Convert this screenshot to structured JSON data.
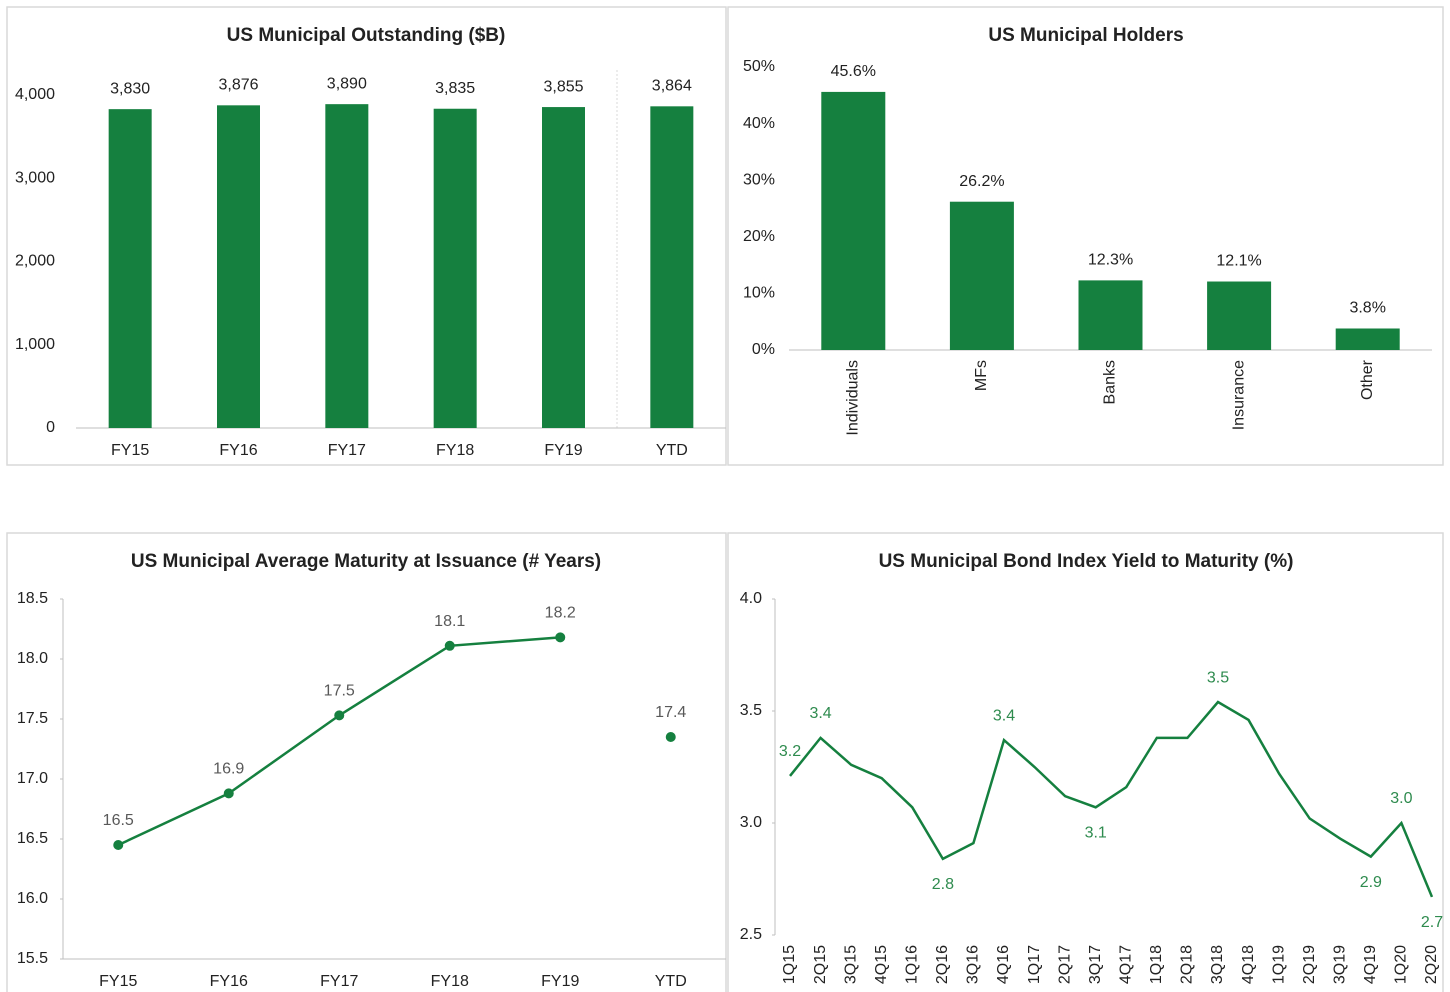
{
  "chart_data": [
    {
      "type": "bar",
      "title": "US Municipal Outstanding ($B)",
      "categories": [
        "FY15",
        "FY16",
        "FY17",
        "FY18",
        "FY19",
        "YTD"
      ],
      "values": [
        3830,
        3876,
        3890,
        3835,
        3855,
        3864
      ],
      "value_labels": [
        "3,830",
        "3,876",
        "3,890",
        "3,835",
        "3,855",
        "3,864"
      ],
      "color": "#15803f",
      "label_color": "#222222",
      "ylim": [
        0,
        4000
      ],
      "yticks": [
        0,
        {
          "value": 1000,
          "label": "1,000"
        },
        {
          "value": 2000,
          "label": "2,000"
        },
        {
          "value": 3000,
          "label": "3,000"
        },
        {
          "value": 4000,
          "label": "4,000"
        }
      ]
    },
    {
      "type": "bar",
      "title": "US Municipal Holders",
      "categories": [
        "Individuals",
        "MFs",
        "Banks",
        "Insurance",
        "Other"
      ],
      "values": [
        45.6,
        26.2,
        12.3,
        12.1,
        3.8
      ],
      "value_labels": [
        "45.6%",
        "26.2%",
        "12.3%",
        "12.1%",
        "3.8%"
      ],
      "color": "#15803f",
      "label_color": "#222222",
      "rotate_categories": true,
      "ylim": [
        0,
        50
      ],
      "yticks": [
        {
          "value": 0,
          "label": "0%"
        },
        {
          "value": 10,
          "label": "10%"
        },
        {
          "value": 20,
          "label": "20%"
        },
        {
          "value": 30,
          "label": "30%"
        },
        {
          "value": 40,
          "label": "40%"
        },
        {
          "value": 50,
          "label": "50%"
        }
      ]
    },
    {
      "type": "line",
      "title": "US Municipal Average Maturity at Issuance (# Years)",
      "categories": [
        "FY15",
        "FY16",
        "FY17",
        "FY18",
        "FY19",
        "YTD"
      ],
      "series": [
        {
          "color": "#15803f",
          "values": [
            16.45,
            16.88,
            17.53,
            18.11,
            18.18,
            null
          ],
          "value_labels": [
            "16.5",
            "16.9",
            "17.5",
            "18.1",
            "18.2",
            null
          ]
        },
        {
          "color": "#15803f",
          "values": [
            null,
            null,
            null,
            null,
            null,
            17.35
          ],
          "value_labels": [
            null,
            null,
            null,
            null,
            null,
            "17.4"
          ]
        }
      ],
      "markers": true,
      "label_color": "#595959",
      "ylim": [
        15.5,
        18.5
      ],
      "yticks": [
        15.5,
        {
          "value": 16,
          "label": "16.0"
        },
        16.5,
        {
          "value": 17,
          "label": "17.0"
        },
        17.5,
        {
          "value": 18,
          "label": "18.0"
        },
        18.5
      ]
    },
    {
      "type": "line",
      "title": "US Municipal Bond Index Yield to Maturity (%)",
      "categories": [
        "1Q15",
        "2Q15",
        "3Q15",
        "4Q15",
        "1Q16",
        "2Q16",
        "3Q16",
        "4Q16",
        "1Q17",
        "2Q17",
        "3Q17",
        "4Q17",
        "1Q18",
        "2Q18",
        "3Q18",
        "4Q18",
        "1Q19",
        "2Q19",
        "3Q19",
        "4Q19",
        "1Q20",
        "2Q20"
      ],
      "series": [
        {
          "color": "#15803f",
          "values": [
            3.21,
            3.38,
            3.26,
            3.2,
            3.07,
            2.84,
            2.91,
            3.37,
            3.25,
            3.12,
            3.07,
            3.16,
            3.38,
            3.38,
            3.54,
            3.46,
            3.22,
            3.02,
            2.93,
            2.85,
            3.0,
            2.67
          ],
          "value_labels": [
            "3.2",
            "3.4",
            null,
            null,
            null,
            "2.8",
            null,
            "3.4",
            null,
            null,
            "3.1",
            null,
            null,
            null,
            "3.5",
            null,
            null,
            null,
            null,
            "2.9",
            "3.0",
            "2.7"
          ]
        }
      ],
      "markers": false,
      "label_color": "#2e8b4e",
      "rotate_categories": true,
      "ylim": [
        2.5,
        4.0
      ],
      "yticks": [
        2.5,
        {
          "value": 3,
          "label": "3.0"
        },
        3.5,
        {
          "value": 4,
          "label": "4.0"
        }
      ]
    }
  ]
}
